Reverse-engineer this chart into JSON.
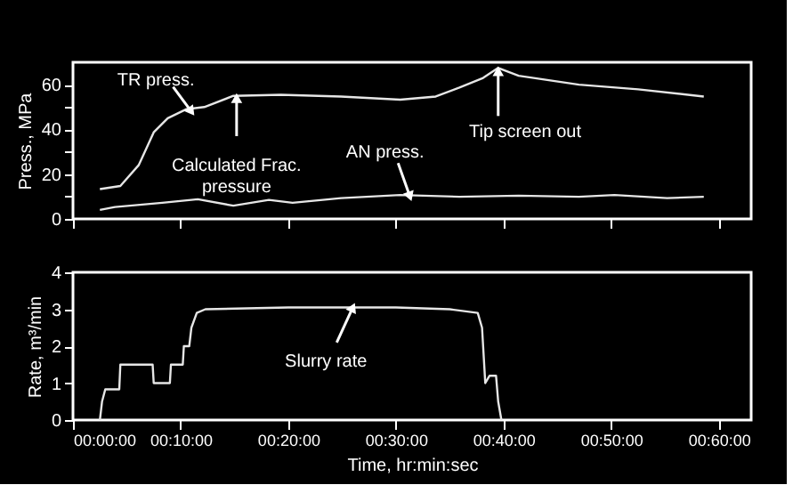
{
  "chart_data": [
    {
      "type": "line",
      "ylabel": "Press., MPa",
      "xlim": [
        0,
        63
      ],
      "ylim": [
        0,
        70
      ],
      "tick_labels": "y",
      "xticks": [
        {
          "value": 0,
          "label": null
        },
        {
          "value": 10,
          "label": null
        },
        {
          "value": 20,
          "label": null
        },
        {
          "value": 30,
          "label": null
        },
        {
          "value": 40,
          "label": null
        },
        {
          "value": 50,
          "label": null
        },
        {
          "value": 60,
          "label": null
        }
      ],
      "yticks": [
        0,
        {
          "value": 10,
          "label": null
        },
        20,
        {
          "value": 30,
          "label": null
        },
        40,
        {
          "value": 50,
          "label": null
        },
        60
      ],
      "series": [
        {
          "color": "#e6e6e6",
          "x": [
            2.5,
            4.4,
            6.1,
            7.5,
            8.8,
            10.5,
            12.2,
            14.9,
            19.3,
            24.9,
            30.4,
            33.7,
            35.9,
            38.1,
            39.5,
            41.4,
            47,
            52.5,
            58.6
          ],
          "values": [
            13.3,
            14.7,
            24,
            38.7,
            45,
            49,
            50,
            55,
            55.5,
            54.7,
            53.3,
            54.7,
            58.7,
            63,
            67.5,
            64,
            60,
            57.9,
            54.7
          ]
        },
        {
          "color": "#e6e6e6",
          "x": [
            2.5,
            3.9,
            8.3,
            11.6,
            14.9,
            18.2,
            20.4,
            24.9,
            30.4,
            35.9,
            41.4,
            47,
            50.3,
            55.2,
            58.6
          ],
          "values": [
            4,
            5.3,
            7.2,
            8.8,
            5.9,
            8.5,
            7.2,
            9.3,
            10.7,
            9.9,
            10.4,
            9.9,
            10.7,
            9.3,
            9.9
          ]
        }
      ],
      "annotations": [
        {
          "text": "TR press.",
          "x": 11,
          "y": 48
        },
        {
          "text": "Calculated Frac.\npressure",
          "x": 15.2,
          "y": 54
        },
        {
          "text": "AN press.",
          "x": 31.3,
          "y": 10
        },
        {
          "text": "Tip screen out",
          "x": 39.5,
          "y": 66
        }
      ]
    },
    {
      "type": "line",
      "xlabel": "Time, hr:min:sec",
      "ylabel": "Rate, m³/min",
      "xlim": [
        0,
        63
      ],
      "ylim": [
        0,
        4
      ],
      "xticks": [
        {
          "value": 0,
          "label": "00:00:00"
        },
        {
          "value": 10,
          "label": "00:10:00"
        },
        {
          "value": 20,
          "label": "00:20:00"
        },
        {
          "value": 30,
          "label": "00:30:00"
        },
        {
          "value": 40,
          "label": "00:40:00"
        },
        {
          "value": 50,
          "label": "00:50:00"
        },
        {
          "value": 60,
          "label": "00:60:00"
        }
      ],
      "yticks": [
        0,
        1,
        2,
        3,
        4
      ],
      "series": [
        {
          "color": "#e6e6e6",
          "x": [
            2.5,
            2.7,
            3.0,
            4.3,
            4.4,
            7.4,
            7.5,
            9.0,
            9.1,
            10.2,
            10.3,
            10.8,
            11.0,
            11.5,
            12.3,
            20,
            30,
            35,
            37.6,
            38.0,
            38.3,
            38.7,
            39.3,
            39.5,
            39.8
          ],
          "values": [
            0,
            0.5,
            0.83,
            0.83,
            1.5,
            1.5,
            1.0,
            1.0,
            1.5,
            1.5,
            2.0,
            2.0,
            2.5,
            2.9,
            3.0,
            3.05,
            3.05,
            3.0,
            2.9,
            2.5,
            1.0,
            1.2,
            1.2,
            0.5,
            0
          ]
        }
      ],
      "annotations": [
        {
          "text": "Slurry rate",
          "x": 26,
          "y": 3.05
        }
      ]
    }
  ]
}
